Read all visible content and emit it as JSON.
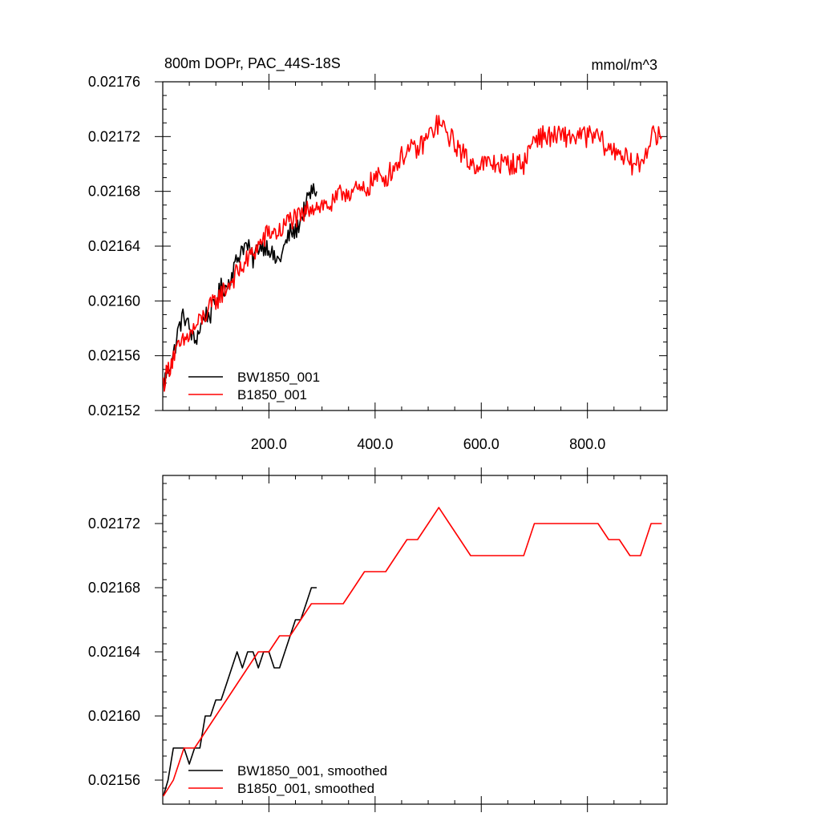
{
  "chart_data": [
    {
      "type": "line",
      "title": "800m DOPr, PAC_44S-18S",
      "units": "mmol/m^3",
      "xlim": [
        0,
        950
      ],
      "ylim": [
        0.02152,
        0.02176
      ],
      "x_ticks": [
        200,
        400,
        600,
        800
      ],
      "x_tick_labels": [
        "200.0",
        "400.0",
        "600.0",
        "800.0"
      ],
      "y_ticks": [
        0.02152,
        0.02156,
        0.0216,
        0.02164,
        0.02168,
        0.02172,
        0.02176
      ],
      "y_tick_labels": [
        "0.02152",
        "0.02156",
        "0.02160",
        "0.02164",
        "0.02168",
        "0.02172",
        "0.02176"
      ],
      "legend_position": "bottom-left",
      "series": [
        {
          "name": "BW1850_001",
          "color": "#000000",
          "x": [
            1,
            10,
            20,
            30,
            40,
            50,
            60,
            70,
            80,
            90,
            100,
            110,
            120,
            130,
            140,
            150,
            160,
            170,
            180,
            190,
            200,
            210,
            220,
            230,
            240,
            250,
            260,
            270,
            280,
            290
          ],
          "y": [
            0.02154,
            0.02155,
            0.02156,
            0.02158,
            0.02159,
            0.02158,
            0.02157,
            0.02158,
            0.02159,
            0.02159,
            0.0216,
            0.02161,
            0.02161,
            0.02162,
            0.02163,
            0.02164,
            0.02164,
            0.02163,
            0.02164,
            0.02164,
            0.02164,
            0.02163,
            0.02163,
            0.02164,
            0.02165,
            0.02165,
            0.02166,
            0.02167,
            0.02168,
            0.02168
          ],
          "noise": 7e-06
        },
        {
          "name": "B1850_001",
          "color": "#ff0000",
          "x": [
            1,
            20,
            40,
            60,
            80,
            100,
            120,
            140,
            160,
            180,
            200,
            220,
            240,
            260,
            280,
            300,
            320,
            340,
            360,
            380,
            400,
            420,
            440,
            460,
            480,
            500,
            520,
            540,
            560,
            580,
            600,
            620,
            640,
            660,
            680,
            700,
            720,
            740,
            760,
            780,
            800,
            820,
            840,
            860,
            880,
            900,
            920,
            940
          ],
          "y": [
            0.02154,
            0.02156,
            0.02157,
            0.02158,
            0.02159,
            0.0216,
            0.02161,
            0.02162,
            0.02163,
            0.02164,
            0.02165,
            0.02165,
            0.02166,
            0.02166,
            0.02167,
            0.02167,
            0.02167,
            0.02168,
            0.02168,
            0.02168,
            0.02169,
            0.02169,
            0.0217,
            0.02171,
            0.02171,
            0.02172,
            0.02173,
            0.02172,
            0.02171,
            0.0217,
            0.0217,
            0.0217,
            0.0217,
            0.0217,
            0.0217,
            0.02172,
            0.02172,
            0.02172,
            0.02172,
            0.02172,
            0.02172,
            0.02172,
            0.02171,
            0.02171,
            0.0217,
            0.0217,
            0.02172,
            0.02172
          ],
          "noise": 8e-06
        }
      ]
    },
    {
      "type": "line",
      "xlim": [
        0,
        950
      ],
      "ylim": [
        0.021545,
        0.02175
      ],
      "x_ticks": [
        200,
        400,
        600,
        800
      ],
      "y_ticks": [
        0.02156,
        0.0216,
        0.02164,
        0.02168,
        0.02172
      ],
      "y_tick_labels": [
        "0.02156",
        "0.02160",
        "0.02164",
        "0.02168",
        "0.02172"
      ],
      "legend_position": "bottom-left",
      "series": [
        {
          "name": "BW1850_001, smoothed",
          "color": "#000000",
          "x": [
            1,
            10,
            20,
            30,
            40,
            50,
            60,
            70,
            80,
            90,
            100,
            110,
            120,
            130,
            140,
            150,
            160,
            170,
            180,
            190,
            200,
            210,
            220,
            230,
            240,
            250,
            260,
            270,
            280,
            290
          ],
          "y": [
            0.02155,
            0.02156,
            0.02158,
            0.02158,
            0.02158,
            0.02157,
            0.02158,
            0.02158,
            0.0216,
            0.0216,
            0.02161,
            0.02161,
            0.02162,
            0.02163,
            0.02164,
            0.02163,
            0.02164,
            0.02164,
            0.02163,
            0.02164,
            0.02164,
            0.02163,
            0.02163,
            0.02164,
            0.02165,
            0.02166,
            0.02166,
            0.02167,
            0.02168,
            0.02168
          ]
        },
        {
          "name": "B1850_001, smoothed",
          "color": "#ff0000",
          "x": [
            1,
            20,
            40,
            60,
            80,
            100,
            120,
            140,
            160,
            180,
            200,
            220,
            240,
            260,
            280,
            300,
            320,
            340,
            360,
            380,
            400,
            420,
            440,
            460,
            480,
            500,
            520,
            540,
            560,
            580,
            600,
            620,
            640,
            660,
            680,
            700,
            720,
            740,
            760,
            780,
            800,
            820,
            840,
            860,
            880,
            900,
            920,
            940
          ],
          "y": [
            0.02155,
            0.02156,
            0.02158,
            0.02158,
            0.02159,
            0.0216,
            0.02161,
            0.02162,
            0.02163,
            0.02164,
            0.02164,
            0.02165,
            0.02165,
            0.02166,
            0.02167,
            0.02167,
            0.02167,
            0.02167,
            0.02168,
            0.02169,
            0.02169,
            0.02169,
            0.0217,
            0.02171,
            0.02171,
            0.02172,
            0.02173,
            0.02172,
            0.02171,
            0.0217,
            0.0217,
            0.0217,
            0.0217,
            0.0217,
            0.0217,
            0.02172,
            0.02172,
            0.02172,
            0.02172,
            0.02172,
            0.02172,
            0.02172,
            0.02171,
            0.02171,
            0.0217,
            0.0217,
            0.02172,
            0.02172
          ]
        }
      ]
    }
  ]
}
